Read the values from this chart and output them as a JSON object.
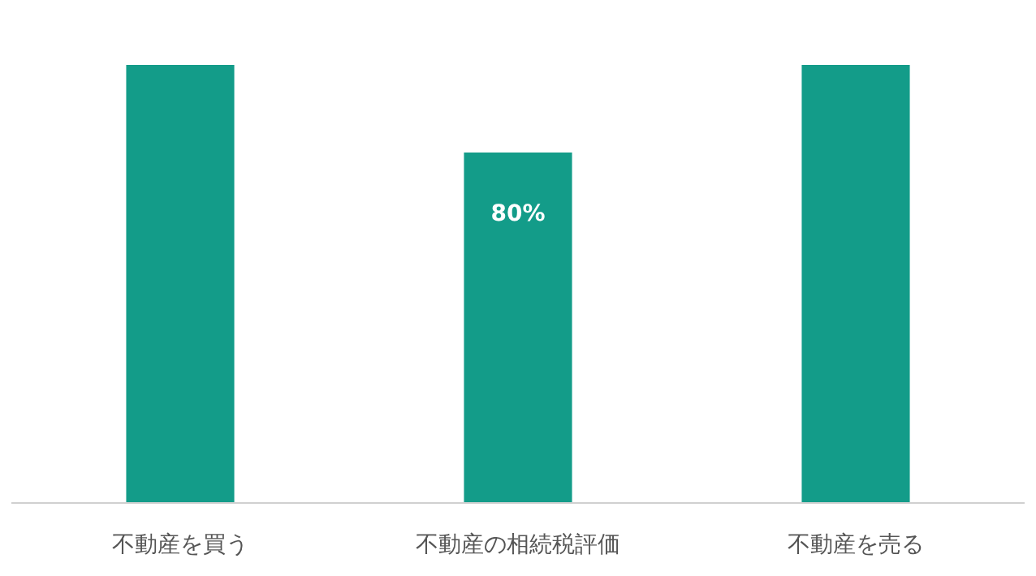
{
  "chart_data": {
    "type": "bar",
    "categories": [
      "不動産を買う",
      "不動産の相続税評価",
      "不動産を売る"
    ],
    "values": [
      100,
      80,
      100
    ],
    "value_labels": [
      null,
      "80%",
      null
    ],
    "ylim": [
      0,
      100
    ],
    "color": "#139c89"
  }
}
